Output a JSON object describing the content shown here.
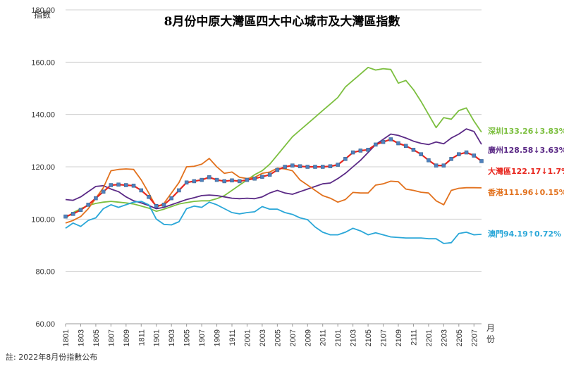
{
  "chart_data": {
    "type": "line",
    "title": "8月份中原大灣區四大中心城市及大灣區指數",
    "ylabel": "指數",
    "xlabel": "月份",
    "note": "註: 2022年8月份指數公布",
    "ylim": [
      60,
      180
    ],
    "yticks": [
      "60.00",
      "80.00",
      "100.00",
      "120.00",
      "140.00",
      "160.00",
      "180.00"
    ],
    "xticks": [
      "1801",
      "1803",
      "1805",
      "1807",
      "1809",
      "1811",
      "1901",
      "1903",
      "1905",
      "1907",
      "1909",
      "1911",
      "2001",
      "2003",
      "2005",
      "2007",
      "2009",
      "2011",
      "2101",
      "2103",
      "2105",
      "2107",
      "2109",
      "2111",
      "2201",
      "2203",
      "2205",
      "2207"
    ],
    "grid": true,
    "legend": "end-of-line labels",
    "x": [
      "1801",
      "1802",
      "1803",
      "1804",
      "1805",
      "1806",
      "1807",
      "1808",
      "1809",
      "1810",
      "1811",
      "1812",
      "1901",
      "1902",
      "1903",
      "1904",
      "1905",
      "1906",
      "1907",
      "1908",
      "1909",
      "1910",
      "1911",
      "1912",
      "2001",
      "2002",
      "2003",
      "2004",
      "2005",
      "2006",
      "2007",
      "2008",
      "2009",
      "2010",
      "2011",
      "2012",
      "2101",
      "2102",
      "2103",
      "2104",
      "2105",
      "2106",
      "2107",
      "2108",
      "2109",
      "2110",
      "2111",
      "2112",
      "2201",
      "2202",
      "2203",
      "2204",
      "2205",
      "2206",
      "2207",
      "2208"
    ],
    "series": [
      {
        "key": "sz",
        "end_label": "深圳133.26↓3.83%",
        "color": "#7cbf3f",
        "values": [
          100.5,
          102.5,
          104.0,
          105.2,
          106.0,
          106.5,
          106.8,
          106.5,
          106.2,
          105.8,
          105.0,
          104.2,
          103.0,
          103.8,
          104.8,
          105.8,
          106.3,
          106.8,
          107.0,
          107.0,
          107.8,
          109.0,
          111.0,
          113.0,
          115.0,
          117.0,
          118.5,
          121.0,
          124.5,
          128.0,
          131.5,
          134.0,
          136.5,
          139.0,
          141.5,
          144.0,
          146.5,
          150.5,
          153.0,
          155.5,
          158.0,
          157.0,
          157.5,
          157.2,
          152.0,
          153.0,
          149.5,
          145.0,
          140.0,
          135.0,
          138.8,
          138.2,
          141.5,
          142.5,
          137.5,
          133.26
        ]
      },
      {
        "key": "gz",
        "end_label": "廣州128.58↓3.63%",
        "color": "#5b2a86",
        "values": [
          107.5,
          107.2,
          108.5,
          110.5,
          112.5,
          112.8,
          111.5,
          110.5,
          108.5,
          107.0,
          106.2,
          105.2,
          104.0,
          104.5,
          105.5,
          106.5,
          107.5,
          108.2,
          109.0,
          109.2,
          109.0,
          108.5,
          108.0,
          107.8,
          108.0,
          107.8,
          108.5,
          110.0,
          111.0,
          110.0,
          109.5,
          110.5,
          111.5,
          112.5,
          113.5,
          113.8,
          115.5,
          117.5,
          120.0,
          122.5,
          125.5,
          128.5,
          130.5,
          132.5,
          132.0,
          131.0,
          129.8,
          129.0,
          128.5,
          129.5,
          128.8,
          131.0,
          132.5,
          134.5,
          133.5,
          128.58
        ]
      },
      {
        "key": "gba",
        "end_label": "大灣區122.17↓1.7%",
        "color": "#e8261e",
        "marker_color": "#4f81bd",
        "values": [
          101.0,
          102.0,
          103.5,
          105.5,
          108.0,
          110.5,
          113.0,
          113.2,
          113.0,
          112.8,
          111.0,
          108.5,
          105.0,
          105.5,
          108.0,
          111.0,
          114.0,
          114.5,
          115.0,
          116.0,
          115.0,
          114.5,
          114.8,
          114.5,
          115.0,
          115.5,
          116.2,
          117.0,
          118.8,
          120.0,
          120.5,
          120.2,
          120.0,
          120.0,
          120.0,
          120.2,
          120.8,
          123.0,
          125.5,
          126.2,
          126.5,
          128.5,
          129.5,
          130.5,
          129.0,
          128.0,
          126.5,
          124.8,
          122.5,
          120.5,
          120.5,
          123.0,
          124.8,
          125.5,
          124.3,
          122.17
        ]
      },
      {
        "key": "hk",
        "end_label": "香港111.96↓0.15%",
        "color": "#e2711d",
        "values": [
          98.5,
          99.5,
          101.0,
          104.0,
          108.0,
          112.0,
          118.5,
          119.0,
          119.2,
          119.0,
          115.0,
          110.0,
          104.5,
          106.0,
          110.0,
          114.0,
          120.0,
          120.2,
          121.0,
          123.2,
          120.0,
          117.5,
          118.0,
          116.0,
          115.5,
          116.0,
          117.5,
          118.0,
          119.5,
          119.2,
          118.5,
          115.0,
          113.0,
          111.0,
          109.0,
          108.0,
          106.5,
          107.5,
          110.2,
          110.0,
          110.0,
          113.0,
          113.5,
          114.5,
          114.3,
          111.5,
          111.0,
          110.3,
          110.0,
          107.0,
          105.5,
          111.0,
          111.8,
          112.0,
          112.0,
          111.96
        ]
      },
      {
        "key": "mo",
        "end_label": "澳門94.19↑0.72%",
        "color": "#2aa7d8",
        "values": [
          96.5,
          98.5,
          97.2,
          99.5,
          100.5,
          104.0,
          105.5,
          104.5,
          105.5,
          106.5,
          106.8,
          105.5,
          100.0,
          98.0,
          97.8,
          99.0,
          104.0,
          105.0,
          104.5,
          106.5,
          105.5,
          104.0,
          102.5,
          102.0,
          102.5,
          102.8,
          104.8,
          103.8,
          103.8,
          102.5,
          101.8,
          100.5,
          99.8,
          97.0,
          95.0,
          94.0,
          94.0,
          95.0,
          96.5,
          95.5,
          94.0,
          94.8,
          94.0,
          93.2,
          93.0,
          92.8,
          92.8,
          92.8,
          92.5,
          92.5,
          90.7,
          91.0,
          94.5,
          95.0,
          94.0,
          94.19
        ]
      }
    ]
  }
}
